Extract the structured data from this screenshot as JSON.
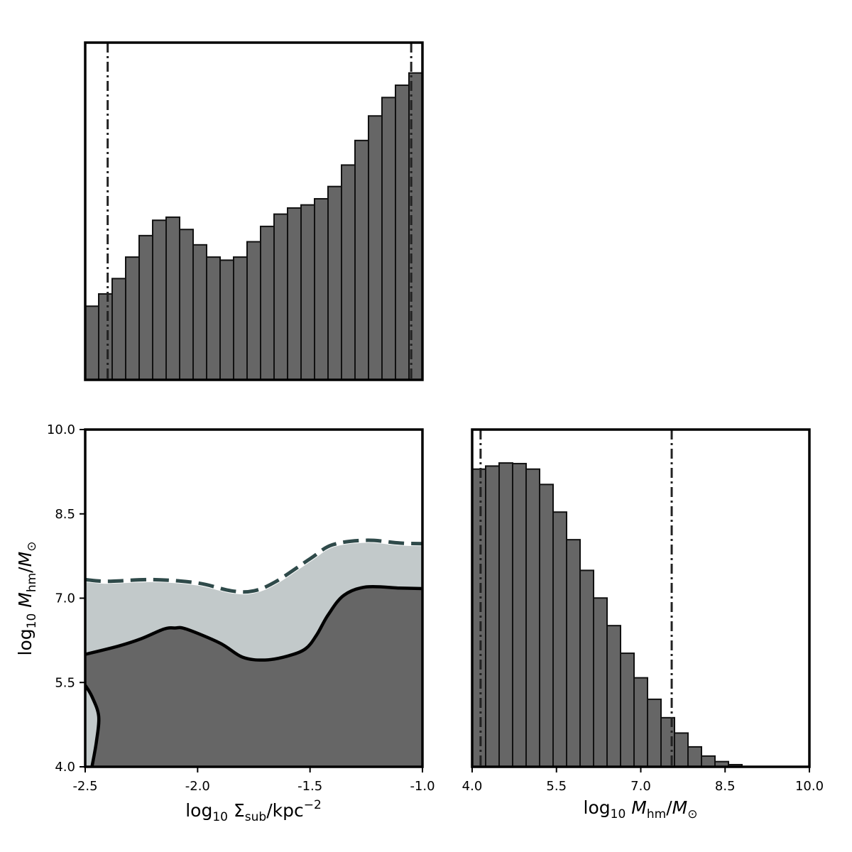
{
  "colors": {
    "bar_fill": "#666666",
    "bar_edge": "#111111",
    "contour_inner_fill": "#666666",
    "contour_outer_fill": "#c2c9ca",
    "contour_inner_line": "#000000",
    "contour_outer_line": "#2f4a4a",
    "quantile_line": "#222222"
  },
  "chart_data": [
    {
      "panel": "top-left",
      "type": "histogram",
      "xlim": [
        -2.5,
        -1.0
      ],
      "bins": 25,
      "bin_edges_range": [
        -2.5,
        -1.0
      ],
      "counts": [
        0.24,
        0.28,
        0.33,
        0.4,
        0.47,
        0.52,
        0.53,
        0.49,
        0.44,
        0.4,
        0.39,
        0.4,
        0.45,
        0.5,
        0.54,
        0.56,
        0.57,
        0.59,
        0.63,
        0.7,
        0.78,
        0.86,
        0.92,
        0.96,
        1.0
      ],
      "quantiles": [
        -2.4,
        -1.05
      ],
      "ticks_visible": false,
      "grid": false
    },
    {
      "panel": "bottom-left",
      "type": "contour",
      "xlim": [
        -2.5,
        -1.0
      ],
      "ylim": [
        4.0,
        10.0
      ],
      "xticks": [
        "-2.5",
        "-2.0",
        "-1.5",
        "-1.0"
      ],
      "yticks": [
        "4.0",
        "5.5",
        "7.0",
        "8.5",
        "10.0"
      ],
      "xlabel_prefix": "log",
      "xlabel_sub_10": "10",
      "xlabel_sigma": "Σ",
      "xlabel_sigma_sub": "sub",
      "xlabel_unit": "/kpc",
      "xlabel_exp": "−2",
      "ylabel_prefix": "log",
      "ylabel_sub_10": "10",
      "ylabel_M": "M",
      "ylabel_M_sub": "hm",
      "ylabel_slash": "/",
      "ylabel_Msun": "M",
      "ylabel_Msun_sub": "⊙",
      "outer_contour_upper": [
        [
          -2.5,
          7.33
        ],
        [
          -2.4,
          7.3
        ],
        [
          -2.2,
          7.33
        ],
        [
          -2.0,
          7.27
        ],
        [
          -1.85,
          7.13
        ],
        [
          -1.75,
          7.13
        ],
        [
          -1.65,
          7.3
        ],
        [
          -1.5,
          7.7
        ],
        [
          -1.4,
          7.95
        ],
        [
          -1.25,
          8.03
        ],
        [
          -1.1,
          7.98
        ],
        [
          -1.0,
          7.97
        ]
      ],
      "inner_contour_upper": [
        [
          -2.5,
          6.0
        ],
        [
          -2.35,
          6.15
        ],
        [
          -2.25,
          6.28
        ],
        [
          -2.15,
          6.45
        ],
        [
          -2.1,
          6.47
        ],
        [
          -2.05,
          6.45
        ],
        [
          -1.9,
          6.2
        ],
        [
          -1.8,
          5.95
        ],
        [
          -1.7,
          5.9
        ],
        [
          -1.6,
          5.97
        ],
        [
          -1.52,
          6.1
        ],
        [
          -1.47,
          6.35
        ],
        [
          -1.42,
          6.7
        ],
        [
          -1.35,
          7.05
        ],
        [
          -1.25,
          7.2
        ],
        [
          -1.1,
          7.18
        ],
        [
          -1.0,
          7.17
        ]
      ],
      "inner_contour_lower_left": [
        [
          -2.5,
          5.45
        ],
        [
          -2.47,
          5.25
        ],
        [
          -2.44,
          4.9
        ],
        [
          -2.45,
          4.45
        ],
        [
          -2.47,
          4.0
        ]
      ]
    },
    {
      "panel": "bottom-right",
      "type": "histogram",
      "xlim": [
        4.0,
        10.0
      ],
      "bins": 25,
      "bin_edges_range": [
        4.0,
        10.0
      ],
      "counts": [
        0.97,
        0.98,
        0.99,
        0.988,
        0.97,
        0.92,
        0.83,
        0.74,
        0.64,
        0.55,
        0.46,
        0.37,
        0.29,
        0.22,
        0.16,
        0.11,
        0.065,
        0.035,
        0.017,
        0.007,
        0.0,
        0.0,
        0.0,
        0.0,
        0.0
      ],
      "quantiles": [
        4.15,
        7.55
      ],
      "xticks": [
        "4.0",
        "5.5",
        "7.0",
        "8.5",
        "10.0"
      ],
      "xlabel_prefix": "log",
      "xlabel_sub_10": "10",
      "xlabel_M": "M",
      "xlabel_M_sub": "hm",
      "xlabel_slash": "/",
      "xlabel_Msun": "M",
      "xlabel_Msun_sub": "⊙",
      "grid": false
    }
  ]
}
